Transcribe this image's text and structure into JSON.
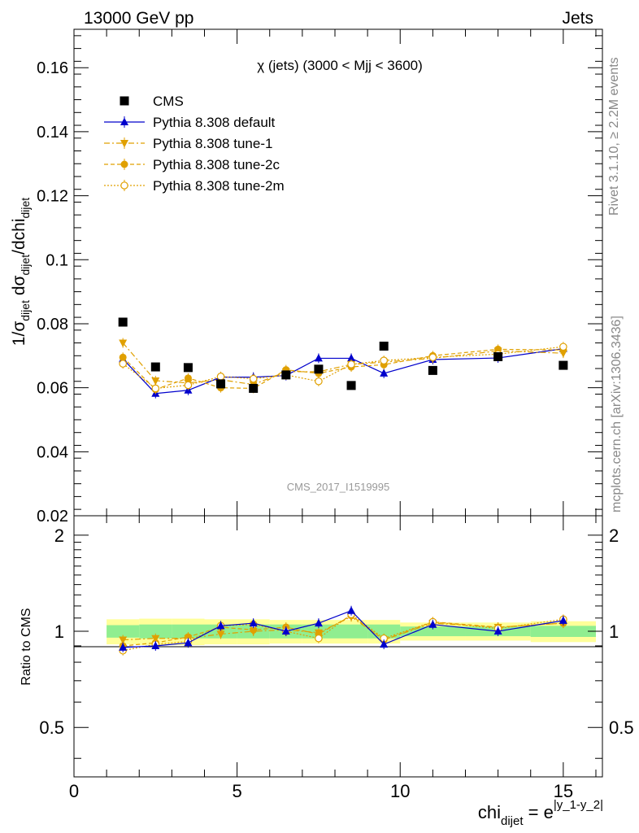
{
  "header": {
    "left": "13000 GeV pp",
    "right": "Jets"
  },
  "side": {
    "rivet": "Rivet 3.1.10, ≥ 2.2M events",
    "mcplots": "mcplots.cern.ch [arXiv:1306.3436]"
  },
  "colors": {
    "cms": "#000000",
    "default": "#0000cc",
    "tunes": "#e0a000",
    "band_inner": "#90ee90",
    "band_outer": "#ffff99"
  },
  "chart_data": [
    {
      "type": "scatter",
      "title": "χ (jets) (3000 < Mjj < 3600)",
      "watermark": "CMS_2017_I1519995",
      "ylabel": "1/σ_dijet dσ_dijet/dchi_dijet",
      "xlim": [
        0,
        16.2
      ],
      "ylim": [
        0.02,
        0.172
      ],
      "yticks": [
        0.02,
        0.04,
        0.06,
        0.08,
        0.1,
        0.12,
        0.14,
        0.16
      ],
      "ytick_labels": [
        "0.02",
        "0.04",
        "0.06",
        "0.08",
        "0.1",
        "0.12",
        "0.14",
        "0.16"
      ],
      "x": [
        1.5,
        2.5,
        3.5,
        4.5,
        5.5,
        6.5,
        7.5,
        8.5,
        9.5,
        11,
        13,
        15
      ],
      "series": [
        {
          "name": "CMS",
          "style": "cms",
          "values": [
            0.0805,
            0.0665,
            0.0663,
            0.0612,
            0.0598,
            0.064,
            0.0658,
            0.0607,
            0.073,
            0.0654,
            0.0697,
            0.067
          ]
        },
        {
          "name": "Pythia 8.308 default",
          "style": "default",
          "values": [
            0.069,
            0.0582,
            0.0592,
            0.0633,
            0.0633,
            0.0638,
            0.0692,
            0.0692,
            0.0645,
            0.0688,
            0.0693,
            0.0722
          ]
        },
        {
          "name": "Pythia 8.308 tune-1",
          "style": "tune1",
          "values": [
            0.074,
            0.0622,
            0.0615,
            0.0625,
            0.061,
            0.065,
            0.065,
            0.0673,
            0.068,
            0.0692,
            0.0715,
            0.0708
          ]
        },
        {
          "name": "Pythia 8.308 tune-2c",
          "style": "tune2c",
          "values": [
            0.0695,
            0.0595,
            0.063,
            0.06,
            0.0598,
            0.0656,
            0.0645,
            0.0665,
            0.0672,
            0.07,
            0.072,
            0.0718
          ]
        },
        {
          "name": "Pythia 8.308 tune-2m",
          "style": "tune2m",
          "values": [
            0.0675,
            0.0598,
            0.0608,
            0.0635,
            0.0628,
            0.064,
            0.062,
            0.0673,
            0.0685,
            0.0695,
            0.0705,
            0.0728
          ]
        }
      ]
    },
    {
      "type": "scatter",
      "ylabel": "Ratio to CMS",
      "xlabel": "chi_dijet = e^|y_1-y_2|",
      "xlim": [
        0,
        16.2
      ],
      "ylim": [
        0.35,
        2.3
      ],
      "log_y": true,
      "yticks": [
        0.5,
        1,
        2
      ],
      "ytick_labels": [
        "0.5",
        "1",
        "2"
      ],
      "xticks": [
        0,
        5,
        10,
        15
      ],
      "xtick_labels": [
        "0",
        "5",
        "10",
        "15"
      ],
      "band_edges": [
        1,
        2,
        3,
        4,
        5,
        6,
        7,
        8,
        9,
        10,
        12,
        14,
        16
      ],
      "band_inner": [
        0.045,
        0.05,
        0.05,
        0.05,
        0.05,
        0.05,
        0.05,
        0.05,
        0.05,
        0.035,
        0.035,
        0.04
      ],
      "band_outer": [
        0.09,
        0.095,
        0.095,
        0.09,
        0.09,
        0.085,
        0.085,
        0.085,
        0.085,
        0.065,
        0.065,
        0.075
      ],
      "x": [
        1.5,
        2.5,
        3.5,
        4.5,
        5.5,
        6.5,
        7.5,
        8.5,
        9.5,
        11,
        13,
        15
      ],
      "series": [
        {
          "name": "Pythia 8.308 default",
          "style": "default",
          "values": [
            0.89,
            0.9,
            0.92,
            1.04,
            1.06,
            1.0,
            1.06,
            1.16,
            0.91,
            1.05,
            1.0,
            1.08
          ]
        },
        {
          "name": "Pythia 8.308 tune-1",
          "style": "tune1",
          "values": [
            0.94,
            0.95,
            0.95,
            0.98,
            1.0,
            1.01,
            0.99,
            1.11,
            0.94,
            1.06,
            1.03,
            1.06
          ]
        },
        {
          "name": "Pythia 8.308 tune-2c",
          "style": "tune2c",
          "values": [
            0.9,
            0.92,
            0.96,
            1.03,
            1.01,
            1.03,
            0.98,
            1.12,
            0.94,
            1.07,
            1.03,
            1.06
          ]
        },
        {
          "name": "Pythia 8.308 tune-2m",
          "style": "tune2m",
          "values": [
            0.87,
            0.91,
            0.93,
            1.04,
            1.05,
            1.0,
            0.95,
            1.13,
            0.95,
            1.07,
            1.02,
            1.09
          ]
        }
      ]
    }
  ]
}
